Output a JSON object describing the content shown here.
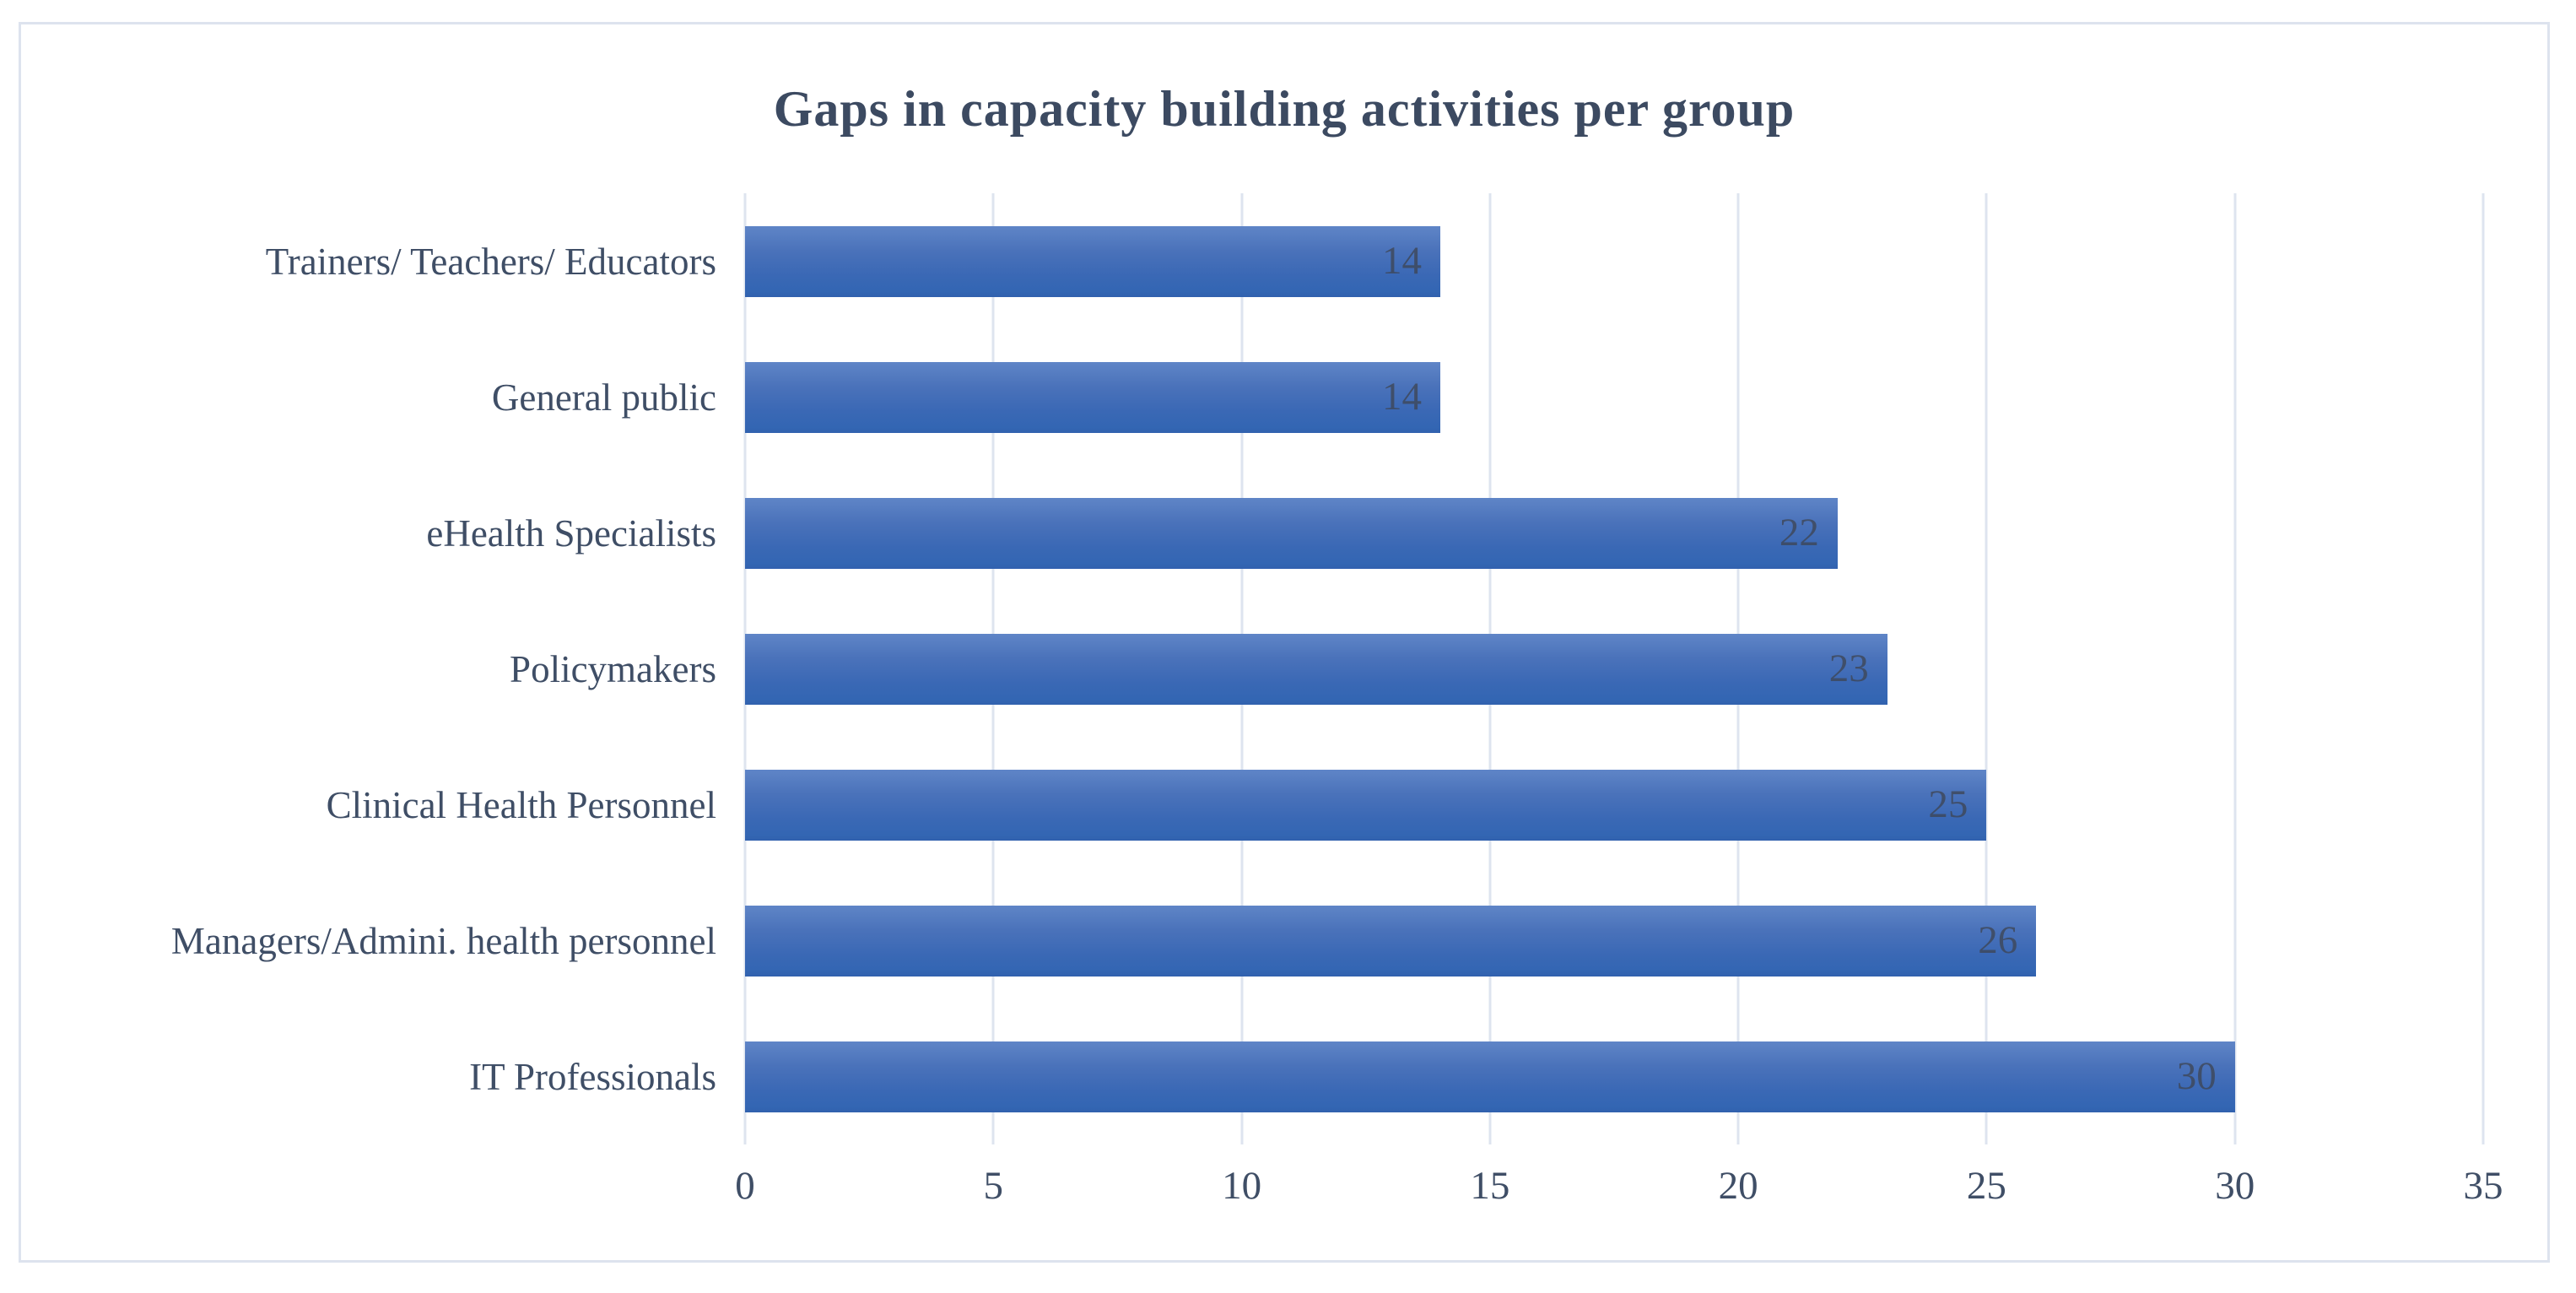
{
  "chart_data": {
    "type": "bar",
    "orientation": "horizontal",
    "title": "Gaps in capacity building activities per group",
    "categories": [
      "Trainers/ Teachers/ Educators",
      "General public",
      "eHealth Specialists",
      "Policymakers",
      "Clinical Health Personnel",
      "Managers/Admini. health personnel",
      "IT Professionals"
    ],
    "values": [
      14,
      14,
      22,
      23,
      25,
      26,
      30
    ],
    "data_labels": [
      "14",
      "14",
      "22",
      "23",
      "25",
      "26",
      "30"
    ],
    "xlabel": "",
    "ylabel": "",
    "xlim": [
      0,
      35
    ],
    "x_ticks": [
      0,
      5,
      10,
      15,
      20,
      25,
      30,
      35
    ],
    "grid": "vertical-only",
    "legend": "none",
    "data_label_position": "inside-end",
    "colors": {
      "bar_gradient_top": "#5f85c7",
      "bar_gradient_bottom": "#3161ae",
      "text": "#3f4e66",
      "title_text": "#3c4a61",
      "data_label_text": "#3e4655",
      "gridline": "#dee4ef",
      "frame_border": "#dde3ee",
      "background": "#ffffff"
    }
  }
}
